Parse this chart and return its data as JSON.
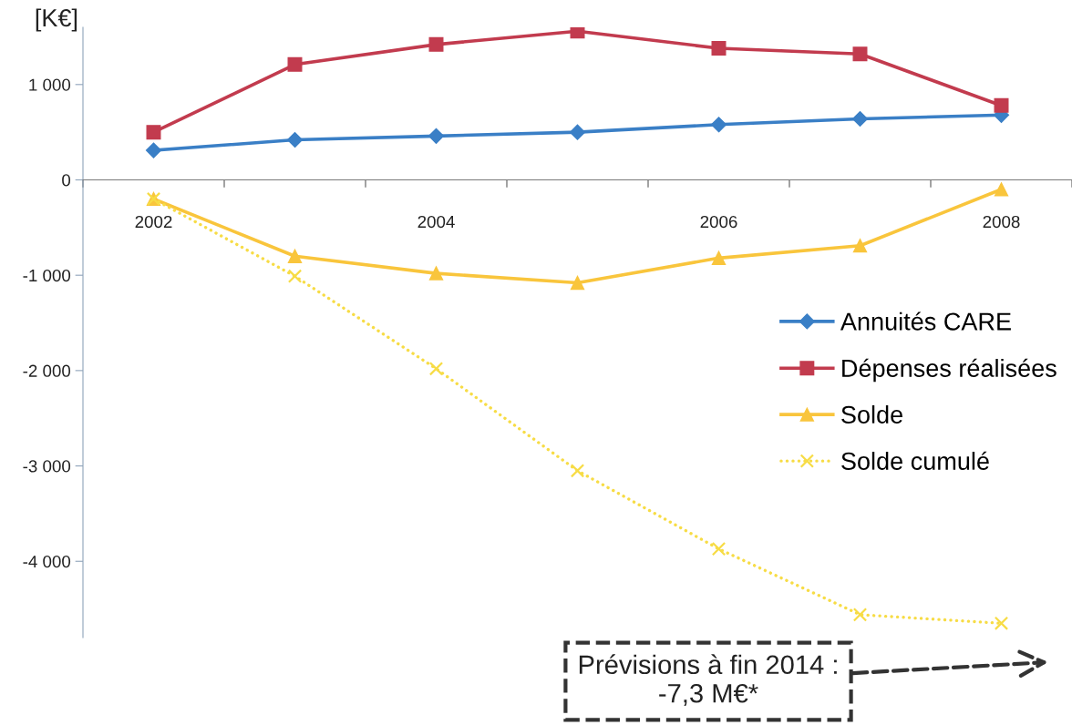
{
  "chart_data": {
    "type": "line",
    "ylabel": "[K€]",
    "categories": [
      "2002",
      null,
      "2004",
      null,
      "2006",
      null,
      "2008"
    ],
    "series": [
      {
        "name": "Annuités CARE",
        "color": "#3a7fc6",
        "marker": "diamond",
        "line_style": "solid",
        "values": [
          310,
          420,
          460,
          500,
          580,
          640,
          680
        ]
      },
      {
        "name": "Dépenses réalisées",
        "color": "#c23b4e",
        "marker": "square",
        "line_style": "solid",
        "values": [
          500,
          1210,
          1420,
          1560,
          1380,
          1320,
          780
        ]
      },
      {
        "name": "Solde",
        "color": "#f9c53c",
        "marker": "triangle",
        "line_style": "solid",
        "values": [
          -200,
          -800,
          -980,
          -1080,
          -820,
          -690,
          -100
        ]
      },
      {
        "name": "Solde cumulé",
        "color": "#f7dc45",
        "marker": "cross",
        "line_style": "dotted",
        "values": [
          -200,
          -1010,
          -1980,
          -3050,
          -3870,
          -4560,
          -4650
        ]
      }
    ],
    "ylim": [
      -4800,
      1600
    ],
    "yticks": [
      {
        "value": 1000,
        "label": "1 000"
      },
      0,
      {
        "value": -1000,
        "label": "-1 000"
      },
      {
        "value": -2000,
        "label": "-2 000"
      },
      {
        "value": -3000,
        "label": "-3 000"
      },
      {
        "value": -4000,
        "label": "-4 000"
      }
    ],
    "legend": "right",
    "annotations": [
      "Prévisions à fin 2014 :\n-7,3 M€*"
    ]
  }
}
